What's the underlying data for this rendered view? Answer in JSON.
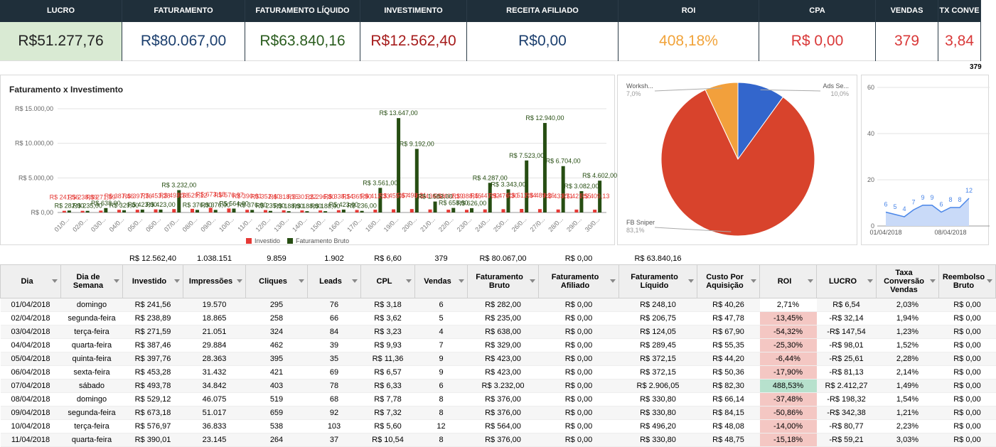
{
  "kpis": [
    {
      "label": "LUCRO",
      "value": "R$51.277,76",
      "color": "#222222",
      "bg": "#d9ead3"
    },
    {
      "label": "FATURAMENTO",
      "value": "R$80.067,00",
      "color": "#1c3f6e",
      "bg": "#ffffff"
    },
    {
      "label": "FATURAMENTO LÍQUIDO",
      "value": "R$63.840,16",
      "color": "#2b5d1f",
      "bg": "#ffffff"
    },
    {
      "label": "INVESTIMENTO",
      "value": "R$12.562,40",
      "color": "#a61c1c",
      "bg": "#ffffff"
    },
    {
      "label": "RECEITA AFILIADO",
      "value": "R$0,00",
      "color": "#1c3f6e",
      "bg": "#ffffff"
    },
    {
      "label": "ROI",
      "value": "408,18%",
      "color": "#f1a33a",
      "bg": "#ffffff"
    },
    {
      "label": "CPA",
      "value": "R$ 0,00",
      "color": "#d93838",
      "bg": "#ffffff"
    },
    {
      "label": "VENDAS",
      "value": "379",
      "color": "#d93838",
      "bg": "#ffffff"
    },
    {
      "label": "TX CONVE",
      "value": "3,84",
      "color": "#d93838",
      "bg": "#ffffff"
    }
  ],
  "kpi_note": "379",
  "chart_data": [
    {
      "type": "bar",
      "title": "Faturamento x Investimento",
      "categories": [
        "01/0...",
        "02/0...",
        "03/0...",
        "04/0...",
        "05/0...",
        "06/0...",
        "07/0...",
        "08/0...",
        "09/0...",
        "10/0...",
        "11/0...",
        "12/0...",
        "13/0...",
        "14/0...",
        "15/0...",
        "16/0...",
        "17/0...",
        "18/0...",
        "19/0...",
        "20/0...",
        "21/0...",
        "22/0...",
        "23/0...",
        "24/0...",
        "25/0...",
        "26/0...",
        "27/0...",
        "28/0...",
        "29/0...",
        "30/0..."
      ],
      "series": [
        {
          "name": "Investido",
          "color": "#e53935",
          "values": [
            241.56,
            238.89,
            271.59,
            387.46,
            397.76,
            453.28,
            493.78,
            529.12,
            673.18,
            576.97,
            390.01,
            352.4,
            318.75,
            301.22,
            296.8,
            338.14,
            365.9,
            412.33,
            455.67,
            498.21,
            436.58,
            402.19,
            388.45,
            447.92,
            476.3,
            512.84,
            489.26,
            433.71,
            421.55,
            409.13
          ],
          "value_labels": [
            "R$ 241,56",
            "R$ 238,89",
            "R$ 271,59",
            "R$ 387,46",
            "R$ 397,76",
            "R$ 453,28",
            "R$ 493,78",
            "R$ 529,12",
            "R$ 673,18",
            "R$ 576,97",
            "R$ 390,01",
            "R$ 352,40",
            "R$ 318,75",
            "R$ 301,22",
            "R$ 296,80",
            "R$ 338,14",
            "R$ 365,90",
            "R$ 412,33",
            "R$ 455,67",
            "R$ 498,21",
            "R$ 436,58",
            "R$ 402,19",
            "R$ 388,45",
            "R$ 447,92",
            "R$ 476,30",
            "R$ 512,84",
            "R$ 489,26",
            "R$ 433,71",
            "R$ 421,55",
            "R$ 409,13"
          ]
        },
        {
          "name": "Faturamento Bruto",
          "color": "#274e13",
          "values": [
            282,
            235,
            638,
            329,
            423,
            423,
            3232,
            376,
            376,
            564,
            376,
            235,
            188,
            188,
            188,
            423,
            236,
            3561,
            13647,
            9192,
            1583,
            658,
            626,
            4287,
            3343,
            7523,
            12940,
            6704,
            3082,
            4602
          ],
          "value_labels": [
            "R$ 282,00",
            "R$ 235,00",
            "R$ 638,00",
            "R$ 329,00",
            "R$ 423,00",
            "R$ 423,00",
            "R$ 3.232,00",
            "R$ 376,00",
            "R$ 376,00",
            "R$ 564,00",
            "R$ 376,00",
            "R$ 235,00",
            "R$ 188,00",
            "R$ 188,00",
            "R$ 188,00",
            "R$ 423,00",
            "R$ 236,00",
            "R$ 3.561,00",
            "R$ 13.647,00",
            "R$ 9.192,00",
            "R$ 1.583,00",
            "R$ 658,00",
            "R$ 626,00",
            "R$ 4.287,00",
            "R$ 3.343,00",
            "R$ 7.523,00",
            "R$ 12.940,00",
            "R$ 6.704,00",
            "R$ 3.082,00",
            "R$ 4.602,00"
          ]
        }
      ],
      "ylim": [
        0,
        15000
      ],
      "yticks": [
        {
          "value": 0,
          "label": "R$ 0,00"
        },
        {
          "value": 5000,
          "label": "R$ 5.000,00"
        },
        {
          "value": 10000,
          "label": "R$ 10.000,00"
        },
        {
          "value": 15000,
          "label": "R$ 15.000,00"
        }
      ],
      "grid": true,
      "legend": "bottom"
    },
    {
      "type": "pie",
      "categories": [
        "Ads Se...",
        "FB Sniper",
        "Worksh..."
      ],
      "values": [
        10.0,
        83.1,
        7.0
      ],
      "value_labels": [
        "10,0%",
        "83,1%",
        "7,0%"
      ],
      "colors": [
        "#3366cc",
        "#d8432c",
        "#f2a03c"
      ]
    },
    {
      "type": "area",
      "categories": [
        "01/04/2018",
        null,
        null,
        null,
        null,
        null,
        null,
        "08/04/2018",
        null,
        null
      ],
      "values": [
        6,
        5,
        4,
        7,
        9,
        9,
        6,
        8,
        8,
        12
      ],
      "color": "#4a86e8",
      "fill": "#c9daf8",
      "ylim": [
        0,
        60
      ],
      "yticks": [
        0,
        20,
        40,
        60
      ],
      "grid": true
    }
  ],
  "summary": [
    "R$ 12.562,40",
    "1.038.151",
    "9.859",
    "1.902",
    "R$ 6,60",
    "379",
    "R$ 80.067,00",
    "R$ 0,00",
    "R$ 63.840,16"
  ],
  "table": {
    "columns": [
      "Dia",
      "Dia de Semana",
      "Investido",
      "Impressões",
      "Cliques",
      "Leads",
      "CPL",
      "Vendas",
      "Faturamento Bruto",
      "Faturamento Afiliado",
      "Faturamento Líquido",
      "Custo Por Aquisição",
      "ROI",
      "LUCRO",
      "Taxa Conversão Vendas",
      "Reembolso Bruto"
    ],
    "rows": [
      [
        "01/04/2018",
        "domingo",
        "R$ 241,56",
        "19.570",
        "295",
        "76",
        "R$ 3,18",
        "6",
        "R$ 282,00",
        "R$ 0,00",
        "R$ 248,10",
        "R$ 40,26",
        "2,71%",
        "R$ 6,54",
        "2,03%",
        "R$ 0,00"
      ],
      [
        "02/04/2018",
        "segunda-feira",
        "R$ 238,89",
        "18.865",
        "258",
        "66",
        "R$ 3,62",
        "5",
        "R$ 235,00",
        "R$ 0,00",
        "R$ 206,75",
        "R$ 47,78",
        "-13,45%",
        "-R$ 32,14",
        "1,94%",
        "R$ 0,00"
      ],
      [
        "03/04/2018",
        "terça-feira",
        "R$ 271,59",
        "21.051",
        "324",
        "84",
        "R$ 3,23",
        "4",
        "R$ 638,00",
        "R$ 0,00",
        "R$ 124,05",
        "R$ 67,90",
        "-54,32%",
        "-R$ 147,54",
        "1,23%",
        "R$ 0,00"
      ],
      [
        "04/04/2018",
        "quarta-feira",
        "R$ 387,46",
        "29.884",
        "462",
        "39",
        "R$ 9,93",
        "7",
        "R$ 329,00",
        "R$ 0,00",
        "R$ 289,45",
        "R$ 55,35",
        "-25,30%",
        "-R$ 98,01",
        "1,52%",
        "R$ 0,00"
      ],
      [
        "05/04/2018",
        "quinta-feira",
        "R$ 397,76",
        "28.363",
        "395",
        "35",
        "R$ 11,36",
        "9",
        "R$ 423,00",
        "R$ 0,00",
        "R$ 372,15",
        "R$ 44,20",
        "-6,44%",
        "-R$ 25,61",
        "2,28%",
        "R$ 0,00"
      ],
      [
        "06/04/2018",
        "sexta-feira",
        "R$ 453,28",
        "31.432",
        "421",
        "69",
        "R$ 6,57",
        "9",
        "R$ 423,00",
        "R$ 0,00",
        "R$ 372,15",
        "R$ 50,36",
        "-17,90%",
        "-R$ 81,13",
        "2,14%",
        "R$ 0,00"
      ],
      [
        "07/04/2018",
        "sábado",
        "R$ 493,78",
        "34.842",
        "403",
        "78",
        "R$ 6,33",
        "6",
        "R$ 3.232,00",
        "R$ 0,00",
        "R$ 2.906,05",
        "R$ 82,30",
        "488,53%",
        "R$ 2.412,27",
        "1,49%",
        "R$ 0,00"
      ],
      [
        "08/04/2018",
        "domingo",
        "R$ 529,12",
        "46.075",
        "519",
        "68",
        "R$ 7,78",
        "8",
        "R$ 376,00",
        "R$ 0,00",
        "R$ 330,80",
        "R$ 66,14",
        "-37,48%",
        "-R$ 198,32",
        "1,54%",
        "R$ 0,00"
      ],
      [
        "09/04/2018",
        "segunda-feira",
        "R$ 673,18",
        "51.017",
        "659",
        "92",
        "R$ 7,32",
        "8",
        "R$ 376,00",
        "R$ 0,00",
        "R$ 330,80",
        "R$ 84,15",
        "-50,86%",
        "-R$ 342,38",
        "1,21%",
        "R$ 0,00"
      ],
      [
        "10/04/2018",
        "terça-feira",
        "R$ 576,97",
        "36.833",
        "538",
        "103",
        "R$ 5,60",
        "12",
        "R$ 564,00",
        "R$ 0,00",
        "R$ 496,20",
        "R$ 48,08",
        "-14,00%",
        "-R$ 80,77",
        "2,23%",
        "R$ 0,00"
      ],
      [
        "11/04/2018",
        "quarta-feira",
        "R$ 390,01",
        "23.145",
        "264",
        "37",
        "R$ 10,54",
        "8",
        "R$ 376,00",
        "R$ 0,00",
        "R$ 330,80",
        "R$ 48,75",
        "-15,18%",
        "-R$ 59,21",
        "3,03%",
        "R$ 0,00"
      ]
    ],
    "roi_fill": [
      "#ffffff",
      "#f4c7c3",
      "#f4c7c3",
      "#f4c7c3",
      "#f4c7c3",
      "#f4c7c3",
      "#b7e1cd",
      "#f4c7c3",
      "#f4c7c3",
      "#f4c7c3",
      "#f4c7c3"
    ]
  }
}
